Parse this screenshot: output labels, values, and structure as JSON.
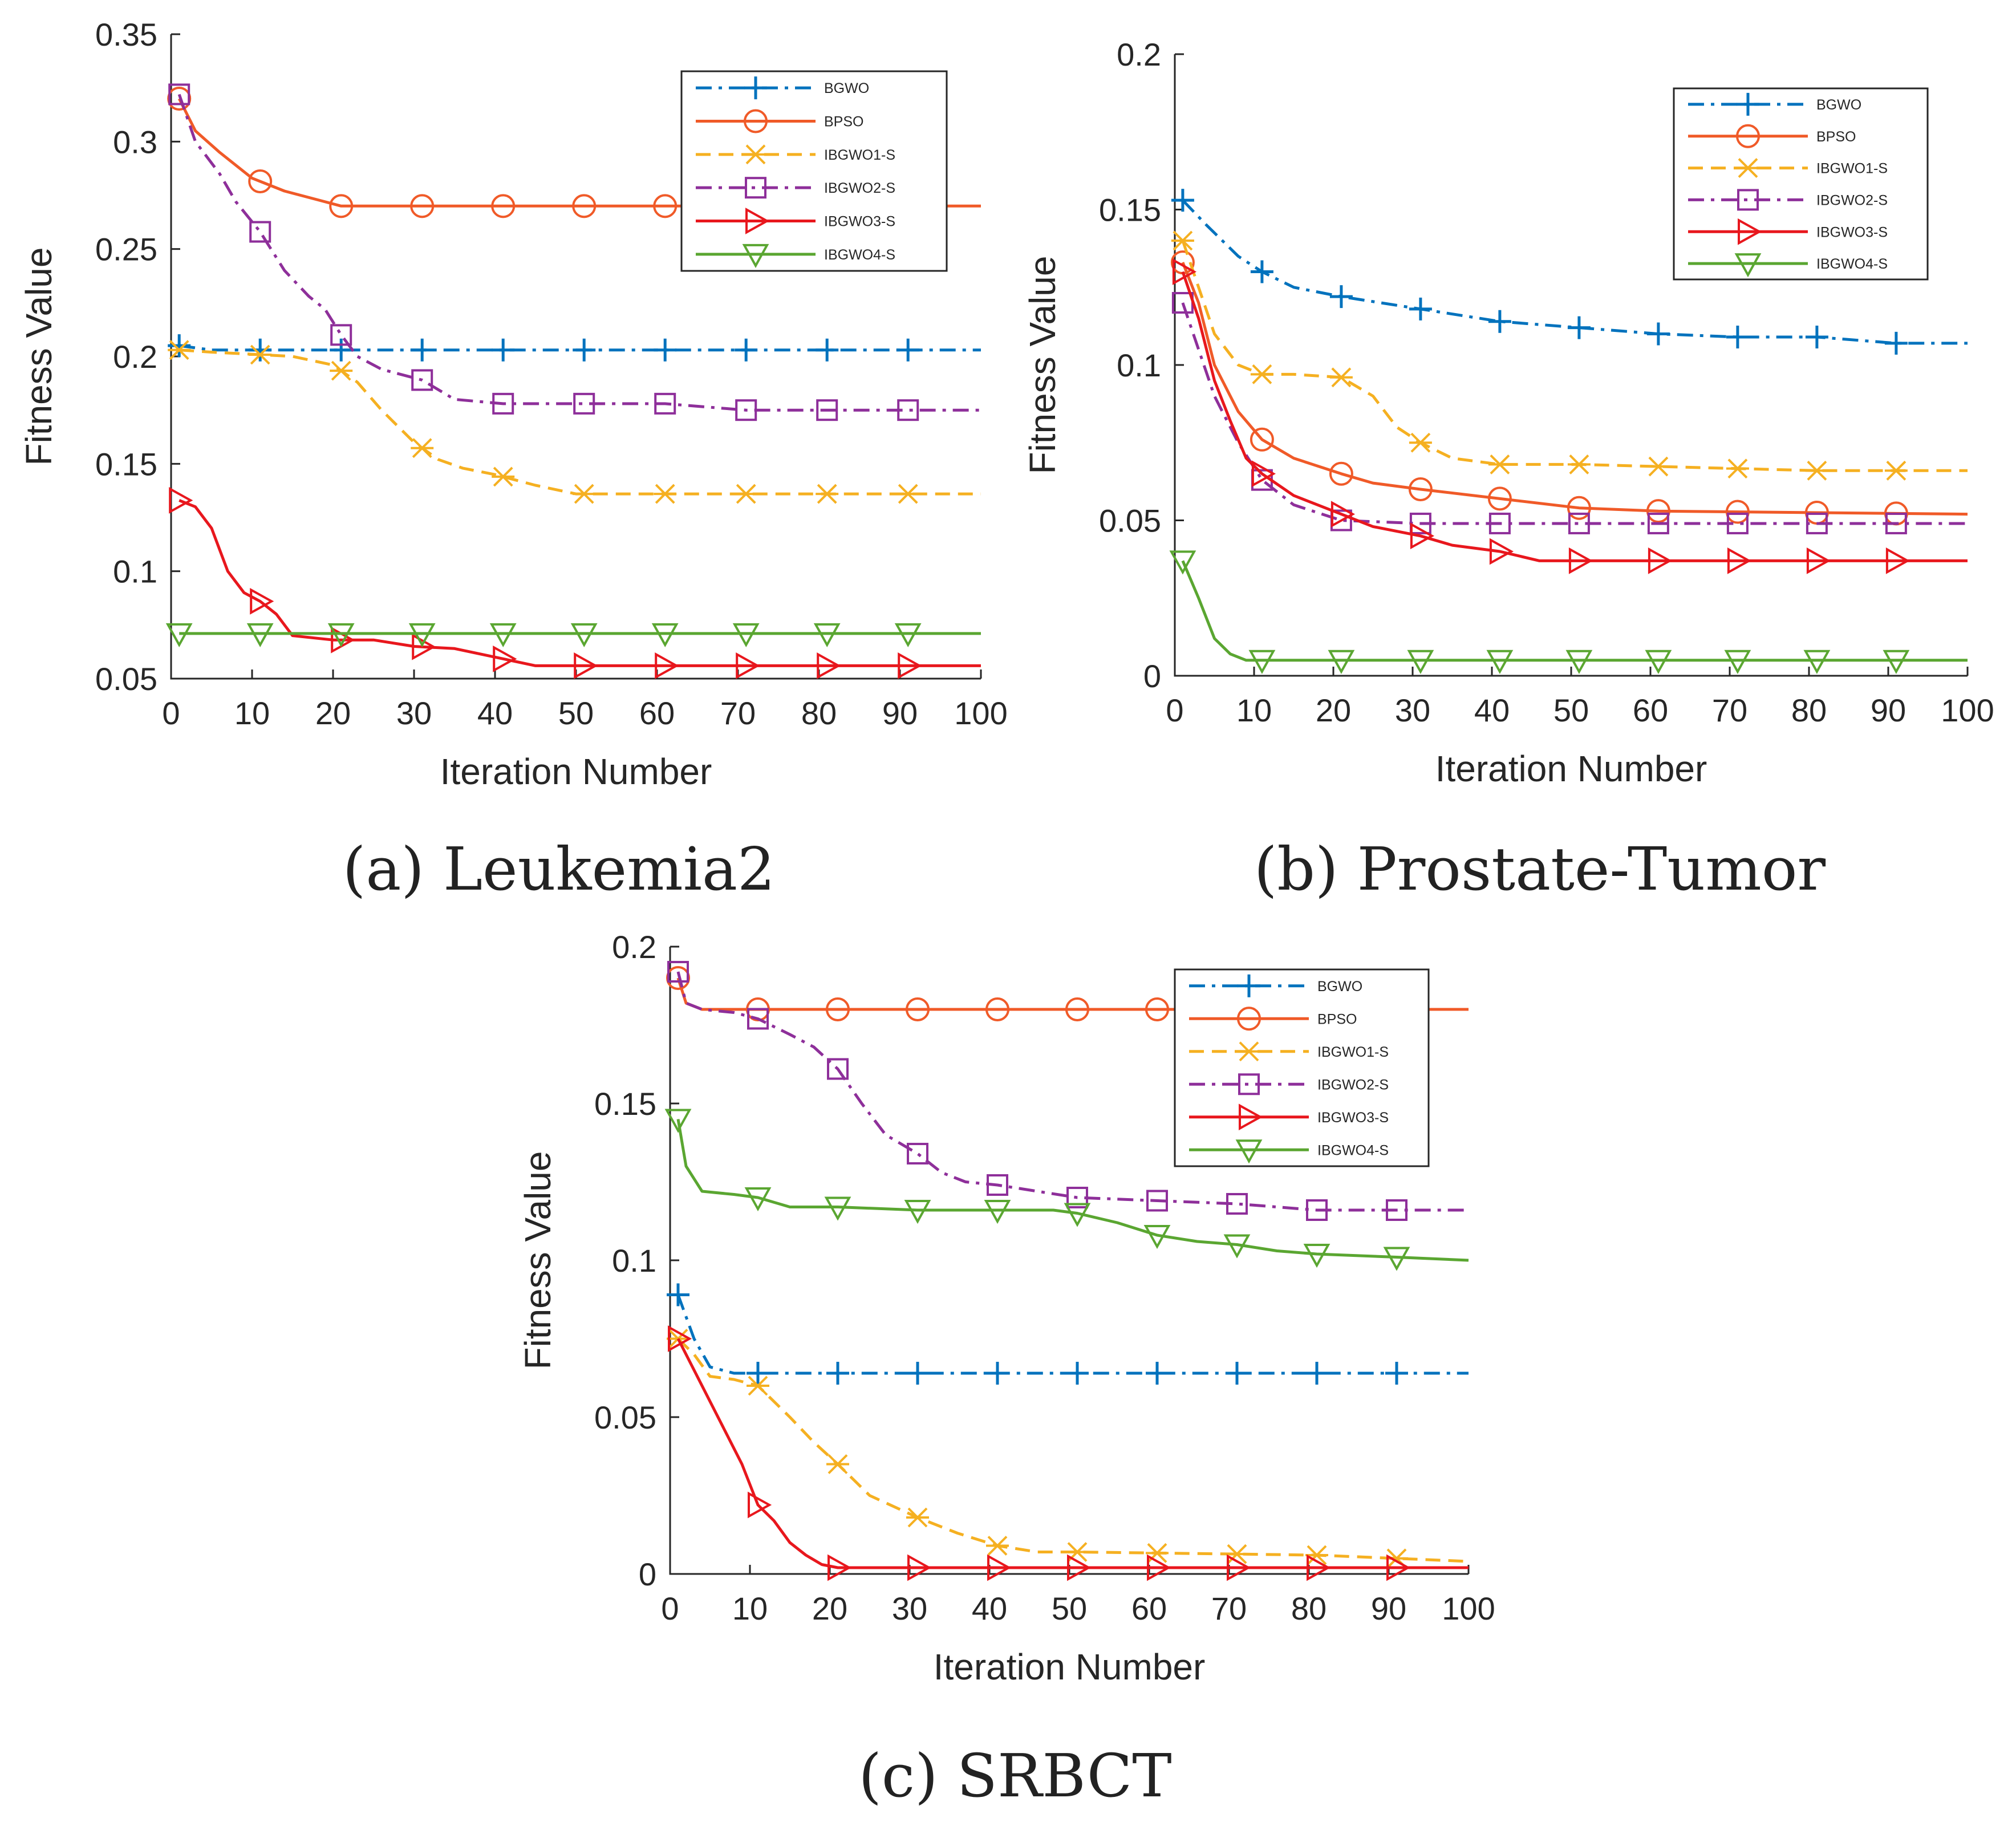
{
  "colors": {
    "BGWO": "#0072bd",
    "BPSO": "#f05a28",
    "IBGWO1-S": "#f5b021",
    "IBGWO2-S": "#8e2f9a",
    "IBGWO3-S": "#e8171d",
    "IBGWO4-S": "#5aa631"
  },
  "chart_data": [
    {
      "type": "line",
      "caption": "(a) Leukemia2",
      "xlabel": "Iteration Number",
      "ylabel": "Fitness Value",
      "xlim": [
        0,
        100
      ],
      "ylim": [
        0.05,
        0.35
      ],
      "xticks": [
        0,
        10,
        20,
        30,
        40,
        50,
        60,
        70,
        80,
        90,
        100
      ],
      "yticks": [
        0.05,
        0.1,
        0.15,
        0.2,
        0.25,
        0.3,
        0.35
      ],
      "ytick_labels": [
        "0.05",
        "0.1",
        "0.15",
        "0.2",
        "0.25",
        "0.3",
        "0.35"
      ],
      "xtick_labels": [
        "0",
        "10",
        "20",
        "30",
        "40",
        "50",
        "60",
        "70",
        "80",
        "90",
        "100"
      ],
      "legend": "top-right",
      "series": [
        {
          "name": "BGWO",
          "style": "dashdot",
          "marker": "plus",
          "x": [
            1,
            5,
            10,
            20,
            100
          ],
          "y": [
            0.205,
            0.203,
            0.203,
            0.203,
            0.203
          ]
        },
        {
          "name": "BPSO",
          "style": "solid",
          "marker": "circle",
          "x": [
            1,
            3,
            6,
            10,
            14,
            18,
            21,
            30,
            100
          ],
          "y": [
            0.32,
            0.305,
            0.295,
            0.283,
            0.277,
            0.273,
            0.27,
            0.27,
            0.27
          ]
        },
        {
          "name": "IBGWO1-S",
          "style": "dashed",
          "marker": "star",
          "x": [
            1,
            5,
            10,
            15,
            20,
            23,
            26,
            30,
            33,
            36,
            40,
            45,
            50,
            100
          ],
          "y": [
            0.203,
            0.202,
            0.201,
            0.2,
            0.196,
            0.188,
            0.175,
            0.16,
            0.152,
            0.148,
            0.145,
            0.14,
            0.136,
            0.136
          ]
        },
        {
          "name": "IBGWO2-S",
          "style": "dashdot",
          "marker": "square",
          "x": [
            1,
            3,
            6,
            8,
            11,
            14,
            17,
            19,
            21,
            23,
            26,
            31,
            35,
            41,
            50,
            61,
            71,
            100
          ],
          "y": [
            0.322,
            0.3,
            0.285,
            0.272,
            0.258,
            0.24,
            0.228,
            0.222,
            0.21,
            0.2,
            0.194,
            0.189,
            0.18,
            0.178,
            0.178,
            0.178,
            0.175,
            0.175
          ]
        },
        {
          "name": "IBGWO3-S",
          "style": "solid",
          "marker": "triangle-right",
          "x": [
            1,
            3,
            5,
            7,
            9,
            11,
            13,
            15,
            20,
            25,
            30,
            35,
            40,
            45,
            50,
            100
          ],
          "y": [
            0.133,
            0.13,
            0.12,
            0.1,
            0.09,
            0.086,
            0.08,
            0.07,
            0.068,
            0.068,
            0.065,
            0.064,
            0.06,
            0.056,
            0.056,
            0.056
          ]
        },
        {
          "name": "IBGWO4-S",
          "style": "solid",
          "marker": "triangle-down",
          "x": [
            1,
            100
          ],
          "y": [
            0.071,
            0.071
          ]
        }
      ]
    },
    {
      "type": "line",
      "caption": "(b) Prostate-Tumor",
      "xlabel": "Iteration Number",
      "ylabel": "Fitness Value",
      "xlim": [
        0,
        100
      ],
      "ylim": [
        0,
        0.2
      ],
      "xticks": [
        0,
        10,
        20,
        30,
        40,
        50,
        60,
        70,
        80,
        90,
        100
      ],
      "yticks": [
        0,
        0.05,
        0.1,
        0.15,
        0.2
      ],
      "ytick_labels": [
        "0",
        "0.05",
        "0.1",
        "0.15",
        "0.2"
      ],
      "xtick_labels": [
        "0",
        "10",
        "20",
        "30",
        "40",
        "50",
        "60",
        "70",
        "80",
        "90",
        "100"
      ],
      "legend": "top-right",
      "series": [
        {
          "name": "BGWO",
          "style": "dashdot",
          "marker": "plus",
          "x": [
            1,
            4,
            8,
            11,
            15,
            21,
            26,
            31,
            36,
            41,
            51,
            61,
            71,
            81,
            91,
            100
          ],
          "y": [
            0.153,
            0.145,
            0.135,
            0.13,
            0.125,
            0.122,
            0.12,
            0.118,
            0.116,
            0.114,
            0.112,
            0.11,
            0.109,
            0.109,
            0.107,
            0.107
          ]
        },
        {
          "name": "BPSO",
          "style": "solid",
          "marker": "circle",
          "x": [
            1,
            3,
            5,
            8,
            11,
            15,
            21,
            25,
            31,
            41,
            51,
            61,
            100
          ],
          "y": [
            0.133,
            0.12,
            0.1,
            0.085,
            0.076,
            0.07,
            0.065,
            0.062,
            0.06,
            0.057,
            0.054,
            0.053,
            0.052
          ]
        },
        {
          "name": "IBGWO1-S",
          "style": "dashed",
          "marker": "star",
          "x": [
            1,
            3,
            5,
            8,
            11,
            15,
            21,
            25,
            28,
            31,
            35,
            41,
            51,
            81,
            100
          ],
          "y": [
            0.14,
            0.125,
            0.11,
            0.1,
            0.097,
            0.097,
            0.096,
            0.09,
            0.08,
            0.075,
            0.07,
            0.068,
            0.068,
            0.066,
            0.066
          ]
        },
        {
          "name": "IBGWO2-S",
          "style": "dashdot",
          "marker": "square",
          "x": [
            1,
            3,
            5,
            8,
            11,
            15,
            21,
            31,
            100
          ],
          "y": [
            0.12,
            0.105,
            0.09,
            0.075,
            0.063,
            0.055,
            0.05,
            0.049,
            0.049
          ]
        },
        {
          "name": "IBGWO3-S",
          "style": "solid",
          "marker": "triangle-right",
          "x": [
            1,
            3,
            5,
            7,
            9,
            11,
            15,
            21,
            25,
            31,
            35,
            41,
            46,
            51,
            100
          ],
          "y": [
            0.13,
            0.115,
            0.095,
            0.082,
            0.07,
            0.065,
            0.058,
            0.052,
            0.048,
            0.045,
            0.042,
            0.04,
            0.037,
            0.037,
            0.037
          ]
        },
        {
          "name": "IBGWO4-S",
          "style": "solid",
          "marker": "triangle-down",
          "x": [
            1,
            3,
            5,
            7,
            9,
            11,
            100
          ],
          "y": [
            0.037,
            0.025,
            0.012,
            0.007,
            0.005,
            0.005,
            0.005
          ]
        }
      ]
    },
    {
      "type": "line",
      "caption": "(c) SRBCT",
      "xlabel": "Iteration Number",
      "ylabel": "Fitness Value",
      "xlim": [
        0,
        100
      ],
      "ylim": [
        0,
        0.2
      ],
      "xticks": [
        0,
        10,
        20,
        30,
        40,
        50,
        60,
        70,
        80,
        90,
        100
      ],
      "yticks": [
        0,
        0.05,
        0.1,
        0.15,
        0.2
      ],
      "ytick_labels": [
        "0",
        "0.05",
        "0.1",
        "0.15",
        "0.2"
      ],
      "xtick_labels": [
        "0",
        "10",
        "20",
        "30",
        "40",
        "50",
        "60",
        "70",
        "80",
        "90",
        "100"
      ],
      "legend": "top-right",
      "series": [
        {
          "name": "BGWO",
          "style": "dashdot",
          "marker": "plus",
          "x": [
            1,
            3,
            5,
            8,
            11,
            100
          ],
          "y": [
            0.089,
            0.075,
            0.066,
            0.064,
            0.064,
            0.064
          ]
        },
        {
          "name": "BPSO",
          "style": "solid",
          "marker": "circle",
          "x": [
            1,
            2,
            4,
            11,
            100
          ],
          "y": [
            0.19,
            0.182,
            0.18,
            0.18,
            0.18
          ]
        },
        {
          "name": "IBGWO1-S",
          "style": "dashed",
          "marker": "star",
          "x": [
            1,
            3,
            5,
            8,
            11,
            15,
            18,
            21,
            25,
            31,
            36,
            41,
            46,
            51,
            81,
            100
          ],
          "y": [
            0.075,
            0.07,
            0.063,
            0.062,
            0.06,
            0.05,
            0.042,
            0.035,
            0.025,
            0.018,
            0.013,
            0.009,
            0.007,
            0.007,
            0.006,
            0.004
          ]
        },
        {
          "name": "IBGWO2-S",
          "style": "dashdot",
          "marker": "square",
          "x": [
            1,
            2,
            4,
            8,
            11,
            15,
            18,
            21,
            24,
            27,
            31,
            34,
            37,
            41,
            46,
            51,
            61,
            71,
            81,
            100
          ],
          "y": [
            0.192,
            0.182,
            0.18,
            0.179,
            0.177,
            0.172,
            0.168,
            0.161,
            0.15,
            0.14,
            0.134,
            0.128,
            0.125,
            0.124,
            0.122,
            0.12,
            0.119,
            0.118,
            0.116,
            0.116
          ]
        },
        {
          "name": "IBGWO3-S",
          "style": "solid",
          "marker": "triangle-right",
          "x": [
            1,
            3,
            5,
            7,
            9,
            11,
            13,
            15,
            17,
            19,
            21,
            100
          ],
          "y": [
            0.075,
            0.065,
            0.055,
            0.045,
            0.035,
            0.022,
            0.017,
            0.01,
            0.006,
            0.003,
            0.002,
            0.002
          ]
        },
        {
          "name": "IBGWO4-S",
          "style": "solid",
          "marker": "triangle-down",
          "x": [
            1,
            2,
            4,
            8,
            11,
            15,
            21,
            31,
            41,
            48,
            51,
            56,
            61,
            66,
            71,
            76,
            81,
            91,
            100
          ],
          "y": [
            0.145,
            0.13,
            0.122,
            0.121,
            0.12,
            0.117,
            0.117,
            0.116,
            0.116,
            0.116,
            0.115,
            0.112,
            0.108,
            0.106,
            0.105,
            0.103,
            0.102,
            0.101,
            0.1
          ]
        }
      ]
    }
  ]
}
